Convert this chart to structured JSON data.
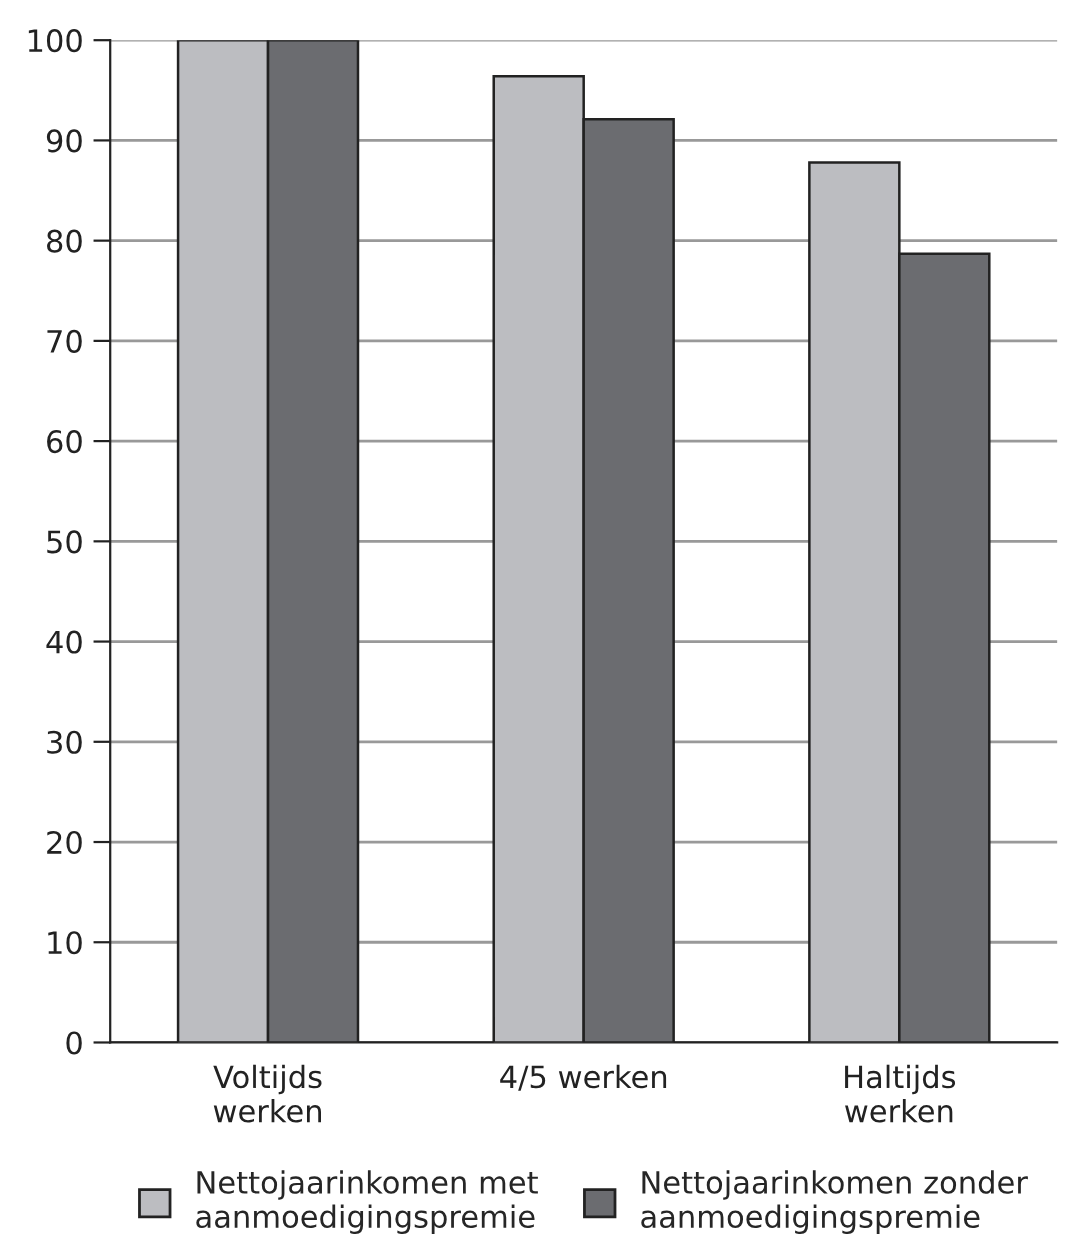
{
  "chart_data": {
    "type": "bar",
    "categories": [
      "Voltijds\nwerken",
      "4/5 werken",
      "Haltijds\nwerken"
    ],
    "series": [
      {
        "name": "Nettojaarinkomen met\naanmoedigingspremie",
        "color": "#bcbdc1",
        "values": [
          100,
          96.4,
          87.8
        ]
      },
      {
        "name": "Nettojaarinkomen zonder\naanmoedigingspremie",
        "color": "#6b6c70",
        "values": [
          100,
          92.1,
          78.7
        ]
      }
    ],
    "ylim": [
      0,
      100
    ],
    "yticks": [
      0,
      10,
      20,
      30,
      40,
      50,
      60,
      70,
      80,
      90,
      100
    ],
    "grid": "y",
    "legend": "bottom"
  }
}
